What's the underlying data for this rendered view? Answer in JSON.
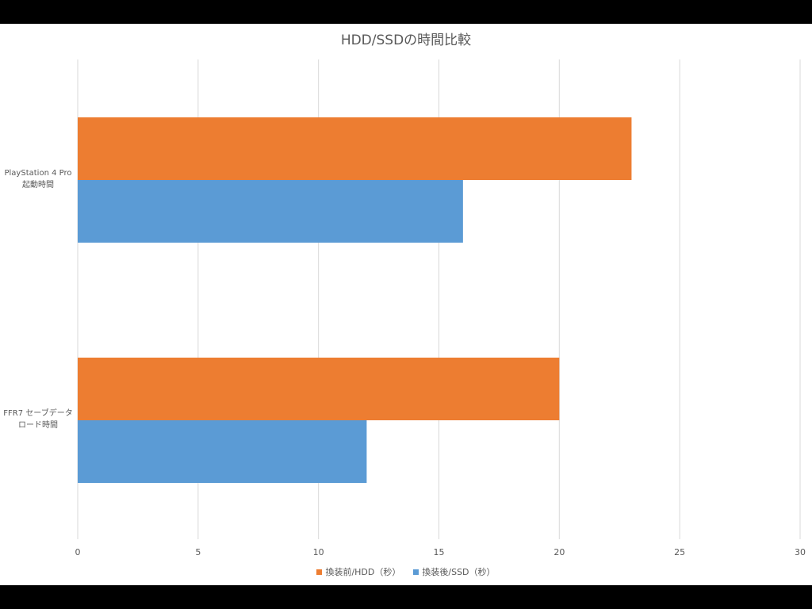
{
  "chart_data": {
    "type": "bar",
    "orientation": "horizontal",
    "title": "HDD/SSDの時間比較",
    "categories": [
      [
        "PlayStation 4 Pro",
        "起動時間"
      ],
      [
        "FFR7 セーブデータ",
        "ロード時間"
      ]
    ],
    "series": [
      {
        "name": "換装前/HDD（秒）",
        "color": "#ED7D31",
        "values": [
          23,
          20
        ]
      },
      {
        "name": "換装後/SSD（秒）",
        "color": "#5B9BD5",
        "values": [
          16,
          12
        ]
      }
    ],
    "xlim": [
      0,
      30
    ],
    "xticks": [
      0,
      5,
      10,
      15,
      20,
      25,
      30
    ],
    "xlabel": "",
    "ylabel": "",
    "grid": "vertical",
    "legend": "bottom"
  },
  "colors": {
    "background": "#000000",
    "plot_background": "#FFFFFF",
    "gridline": "#D9D9D9",
    "text": "#595959"
  }
}
